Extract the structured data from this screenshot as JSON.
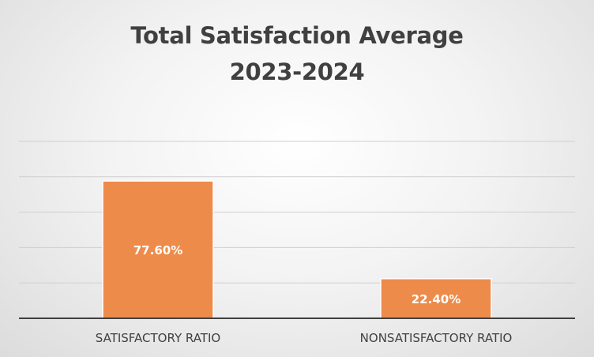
{
  "chart_data": {
    "type": "bar",
    "title_line1": "Total Satisfaction Average",
    "title_line2": "2023-2024",
    "categories": [
      "SATISFACTORY RATIO",
      "NONSATISFACTORY RATIO"
    ],
    "values": [
      77.6,
      22.4
    ],
    "data_labels": [
      "77.60%",
      "22.40%"
    ],
    "ylim": [
      0,
      100
    ],
    "grid": true,
    "legend": "none",
    "bar_color": "#ed8b4b"
  }
}
